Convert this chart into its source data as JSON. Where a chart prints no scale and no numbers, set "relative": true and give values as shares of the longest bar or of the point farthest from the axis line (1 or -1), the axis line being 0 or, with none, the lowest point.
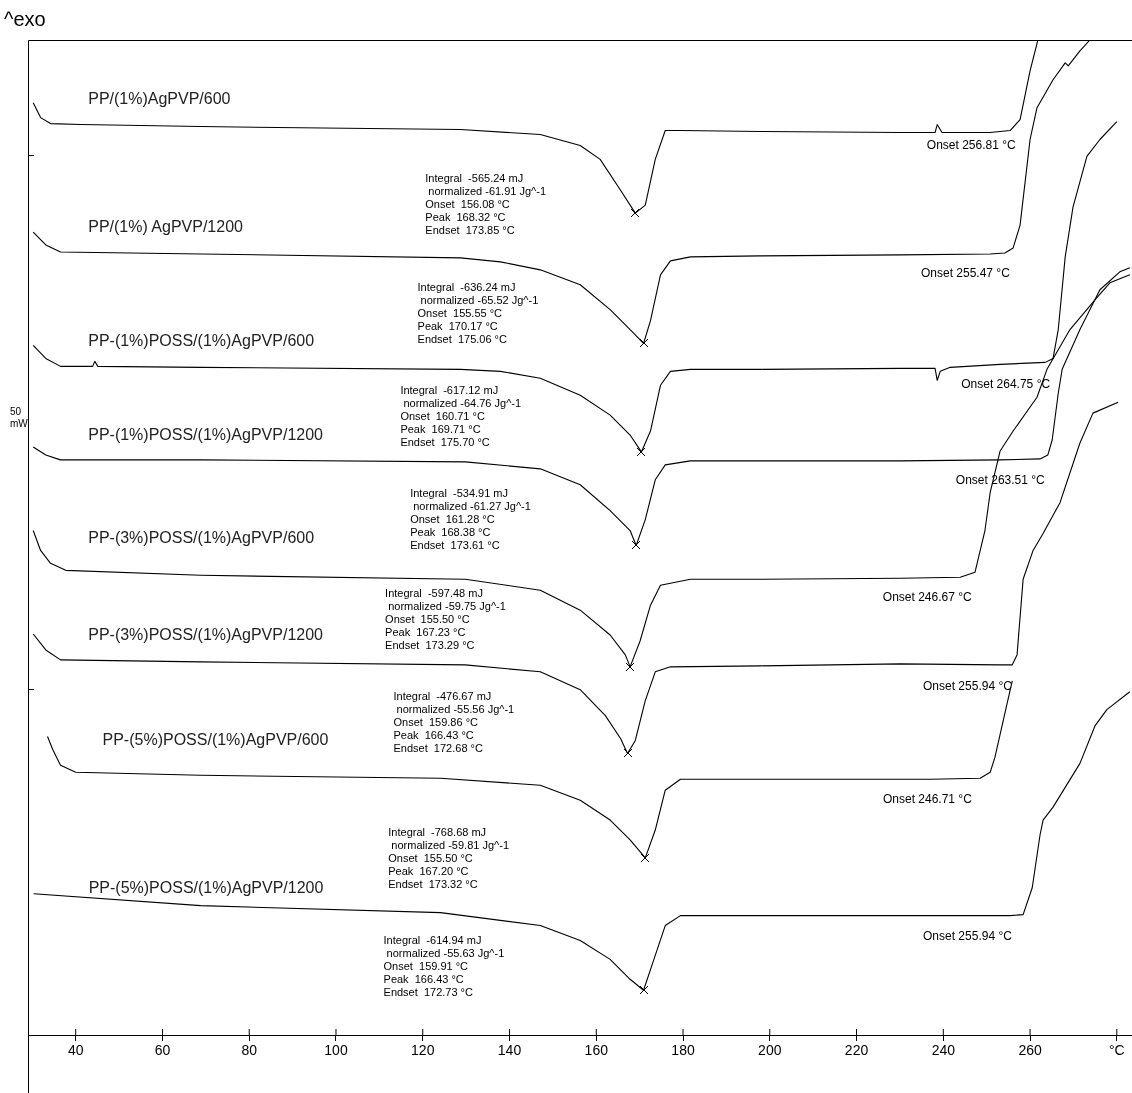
{
  "chart_data": {
    "type": "line",
    "relative": true,
    "xlim": [
      29,
      283.5
    ],
    "xticks": [
      40,
      60,
      80,
      100,
      120,
      140,
      160,
      180,
      200,
      220,
      240,
      260,
      {
        "value": 280,
        "label": "°C"
      }
    ],
    "series": [
      {
        "name": "PP/(1%)AgPVP/600",
        "color": "#000000",
        "x": [
          30.2,
          31.9,
          34.2,
          41.2,
          68.8,
          128.7,
          147.1,
          156.3,
          160.9,
          165.6,
          169.0,
          171.3,
          173.6,
          175.9,
          179.4,
          197.8,
          230.1,
          238.1,
          238.6,
          239.7,
          250.8,
          255.4,
          257.7,
          260.0,
          261.8
        ],
        "values": [
          0.937,
          0.922,
          0.916,
          0.915,
          0.913,
          0.91,
          0.905,
          0.894,
          0.88,
          0.849,
          0.826,
          0.834,
          0.88,
          0.909,
          0.909,
          0.908,
          0.907,
          0.907,
          0.915,
          0.907,
          0.907,
          0.909,
          0.92,
          0.969,
          1
        ]
      },
      {
        "name": "PP/(1%) AgPVP/1200",
        "color": "#000000",
        "x": [
          30.2,
          33.1,
          36.5,
          68.8,
          128.7,
          137.9,
          147.1,
          156.3,
          163.2,
          167.8,
          170.9,
          172.5,
          174.8,
          177.1,
          181.7,
          197.8,
          230.1,
          250.8,
          254.2,
          256.1,
          257.7,
          260.0,
          261.6,
          265.3,
          268.1,
          268.8,
          271.5,
          273.8
        ],
        "values": [
          0.807,
          0.794,
          0.787,
          0.785,
          0.781,
          0.777,
          0.769,
          0.754,
          0.729,
          0.709,
          0.695,
          0.718,
          0.764,
          0.778,
          0.782,
          0.783,
          0.784,
          0.785,
          0.786,
          0.791,
          0.814,
          0.9,
          0.932,
          0.96,
          0.977,
          0.974,
          0.989,
          1
        ]
      },
      {
        "name": "PP-(1%)POSS/(1%)AgPVP/600",
        "color": "#000000",
        "x": [
          30.2,
          33.1,
          36.5,
          43.9,
          44.4,
          45.1,
          68.8,
          128.7,
          137.9,
          147.1,
          156.3,
          163.2,
          167.8,
          170.4,
          172.5,
          174.8,
          177.1,
          181.7,
          197.8,
          230.1,
          238.1,
          238.6,
          239.3,
          241.6,
          253.1,
          263.5,
          265.3,
          266.5,
          268.1,
          269.9,
          273.1,
          276.1,
          280.0
        ],
        "values": [
          0.693,
          0.68,
          0.672,
          0.672,
          0.677,
          0.672,
          0.671,
          0.669,
          0.667,
          0.66,
          0.643,
          0.623,
          0.603,
          0.586,
          0.607,
          0.653,
          0.667,
          0.669,
          0.669,
          0.67,
          0.67,
          0.658,
          0.667,
          0.671,
          0.674,
          0.676,
          0.68,
          0.709,
          0.782,
          0.832,
          0.883,
          0.9,
          0.918
        ]
      },
      {
        "name": "PP-(1%)POSS/(1%)AgPVP/1200",
        "color": "#000000",
        "x": [
          30.2,
          33.1,
          36.5,
          68.8,
          129.8,
          147.1,
          156.3,
          163.2,
          167.8,
          169.2,
          171.3,
          173.6,
          175.9,
          181.7,
          197.8,
          230.1,
          253.1,
          262.3,
          264.1,
          265.1,
          266.5,
          267.4,
          271.5,
          276.1,
          280.7,
          283.0
        ],
        "values": [
          0.591,
          0.583,
          0.578,
          0.578,
          0.576,
          0.569,
          0.553,
          0.527,
          0.507,
          0.492,
          0.518,
          0.558,
          0.573,
          0.577,
          0.577,
          0.577,
          0.578,
          0.579,
          0.583,
          0.598,
          0.645,
          0.669,
          0.709,
          0.749,
          0.767,
          0.771
        ]
      },
      {
        "name": "PP-(3%)POSS/(1%)AgPVP/600",
        "color": "#000000",
        "x": [
          30.2,
          31.9,
          34.2,
          37.7,
          68.8,
          129.8,
          147.1,
          156.3,
          163.2,
          166.7,
          167.8,
          170.1,
          172.5,
          174.8,
          181.7,
          197.8,
          230.1,
          243.9,
          247.3,
          249.6,
          250.8,
          253.1,
          256.1,
          261.6,
          263.9,
          269.2,
          275.4,
          278.4,
          283.0
        ],
        "values": [
          0.507,
          0.487,
          0.474,
          0.467,
          0.462,
          0.458,
          0.447,
          0.427,
          0.402,
          0.382,
          0.37,
          0.396,
          0.432,
          0.452,
          0.458,
          0.458,
          0.459,
          0.46,
          0.465,
          0.507,
          0.545,
          0.587,
          0.607,
          0.641,
          0.669,
          0.709,
          0.741,
          0.756,
          0.764
        ]
      },
      {
        "name": "PP-(3%)POSS/(1%)AgPVP/1200",
        "color": "#000000",
        "x": [
          30.2,
          33.1,
          36.5,
          68.8,
          129.8,
          147.1,
          156.3,
          162.1,
          165.6,
          167.2,
          169.0,
          171.3,
          173.6,
          177.1,
          197.8,
          230.1,
          253.1,
          255.9,
          257.0,
          258.4,
          260.7,
          263.0,
          266.9,
          271.5,
          274.5,
          280.3
        ],
        "values": [
          0.403,
          0.387,
          0.377,
          0.375,
          0.372,
          0.365,
          0.347,
          0.321,
          0.298,
          0.283,
          0.296,
          0.336,
          0.365,
          0.37,
          0.371,
          0.373,
          0.372,
          0.372,
          0.382,
          0.458,
          0.487,
          0.504,
          0.535,
          0.595,
          0.625,
          0.636
        ]
      },
      {
        "name": "PP-(5%)POSS/(1%)AgPVP/600",
        "color": "#000000",
        "x": [
          33.5,
          34.7,
          36.5,
          40.0,
          68.8,
          124.1,
          147.1,
          156.3,
          163.2,
          167.8,
          171.3,
          173.6,
          175.9,
          179.4,
          197.8,
          237.0,
          248.5,
          250.8,
          251.9,
          254.7,
          255.9
        ],
        "values": [
          0.3,
          0.287,
          0.271,
          0.264,
          0.261,
          0.258,
          0.251,
          0.236,
          0.216,
          0.196,
          0.178,
          0.206,
          0.246,
          0.257,
          0.257,
          0.257,
          0.258,
          0.264,
          0.279,
          0.333,
          0.356
        ]
      },
      {
        "name": "PP-(5%)POSS/(1%)AgPVP/1200",
        "color": "#000000",
        "x": [
          30.3,
          68.8,
          124.1,
          147.1,
          156.3,
          163.2,
          167.8,
          170.9,
          173.6,
          175.9,
          179.4,
          197.8,
          237.0,
          255.4,
          258.4,
          260.5,
          262.3,
          263.0,
          265.3,
          271.5,
          275.0,
          277.7,
          283.0
        ],
        "values": [
          0.142,
          0.13,
          0.123,
          0.11,
          0.095,
          0.076,
          0.056,
          0.045,
          0.08,
          0.11,
          0.12,
          0.12,
          0.12,
          0.12,
          0.121,
          0.148,
          0.201,
          0.216,
          0.229,
          0.273,
          0.311,
          0.327,
          0.345
        ]
      }
    ],
    "annotations": [
      "^exo",
      "50\nmW",
      "Integral  -565.24 mJ\n normalized -61.91 Jg^-1\nOnset  156.08 °C\nPeak  168.32 °C\nEndset  173.85 °C",
      "Integral  -636.24 mJ\n normalized -65.52 Jg^-1\nOnset  155.55 °C\nPeak  170.17 °C\nEndset  175.06 °C",
      "Integral  -617.12 mJ\n normalized -64.76 Jg^-1\nOnset  160.71 °C\nPeak  169.71 °C\nEndset  175.70 °C",
      "Integral  -534.91 mJ\n normalized -61.27 Jg^-1\nOnset  161.28 °C\nPeak  168.38 °C\nEndset  173.61 °C",
      "Integral  -597.48 mJ\n normalized -59.75 Jg^-1\nOnset  155.50 °C\nPeak  167.23 °C\nEndset  173.29 °C",
      "Integral  -476.67 mJ\n normalized -55.56 Jg^-1\nOnset  159.86 °C\nPeak  166.43 °C\nEndset  172.68 °C",
      "Integral  -768.68 mJ\n normalized -59.81 Jg^-1\nOnset  155.50 °C\nPeak  167.20 °C\nEndset  173.32 °C",
      "Integral  -614.94 mJ\n normalized -55.63 Jg^-1\nOnset  159.91 °C\nPeak  166.43 °C\nEndset  172.73 °C",
      {
        "text": "Onset 256.81 °C",
        "x": 256.81,
        "y": 0.915
      },
      {
        "text": "Onset 255.47 °C",
        "x": 255.47,
        "y": 0.786
      },
      {
        "text": "Onset 264.75 °C",
        "x": 264.75,
        "y": 0.674
      },
      {
        "text": "Onset 263.51 °C",
        "x": 263.51,
        "y": 0.578
      },
      {
        "text": "Onset 246.67 °C",
        "x": 246.67,
        "y": 0.46
      },
      {
        "text": "Onset 255.94 °C",
        "x": 255.94,
        "y": 0.371
      },
      {
        "text": "Onset 246.71 °C",
        "x": 246.71,
        "y": 0.257
      },
      {
        "text": "Onset 255.94 °C",
        "x": 255.94,
        "y": 0.12
      }
    ]
  }
}
